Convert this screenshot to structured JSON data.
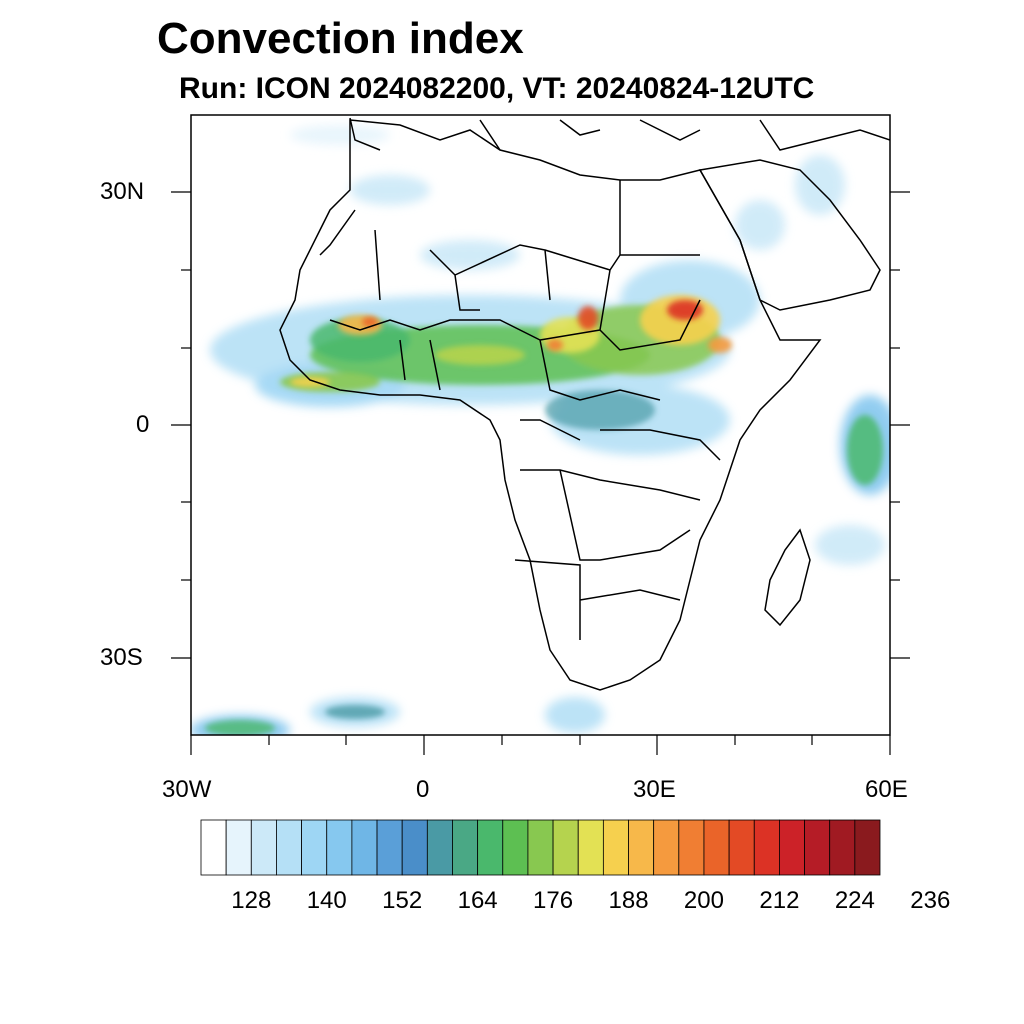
{
  "header": {
    "title": "Convection index",
    "subtitle": "Run: ICON 2024082200,  VT: 20240824-12UTC"
  },
  "map": {
    "lon_range": [
      -30,
      60
    ],
    "lat_range": [
      -40,
      40
    ],
    "x_tick_labels": [
      "30W",
      "0",
      "30E",
      "60E"
    ],
    "y_tick_labels": [
      "30N",
      "0",
      "30S"
    ],
    "border_color": "#000000",
    "convection_regions": [
      "West Africa / Sahel band",
      "Central Africa",
      "Sudan / Ethiopian highlands",
      "Western Indian Ocean near Seychelles",
      "Southern Atlantic / Southern Ocean fronts"
    ]
  },
  "colorbar": {
    "tick_labels": [
      "128",
      "140",
      "152",
      "164",
      "176",
      "188",
      "200",
      "212",
      "224",
      "236"
    ],
    "colors": [
      "#ffffff",
      "#e6f4fc",
      "#cce9f8",
      "#b5e0f6",
      "#9ed6f4",
      "#86c8ef",
      "#6fb6e6",
      "#5a9fd8",
      "#4a8ec9",
      "#4a9aa5",
      "#4aa885",
      "#4ab86c",
      "#5dbf52",
      "#88c850",
      "#b5d34e",
      "#e3e154",
      "#f6d04e",
      "#f7b84a",
      "#f59a3e",
      "#f07e33",
      "#ea6429",
      "#e34a25",
      "#dc3225",
      "#cc2228",
      "#b51c26",
      "#a01a22",
      "#8a1a1e"
    ]
  }
}
